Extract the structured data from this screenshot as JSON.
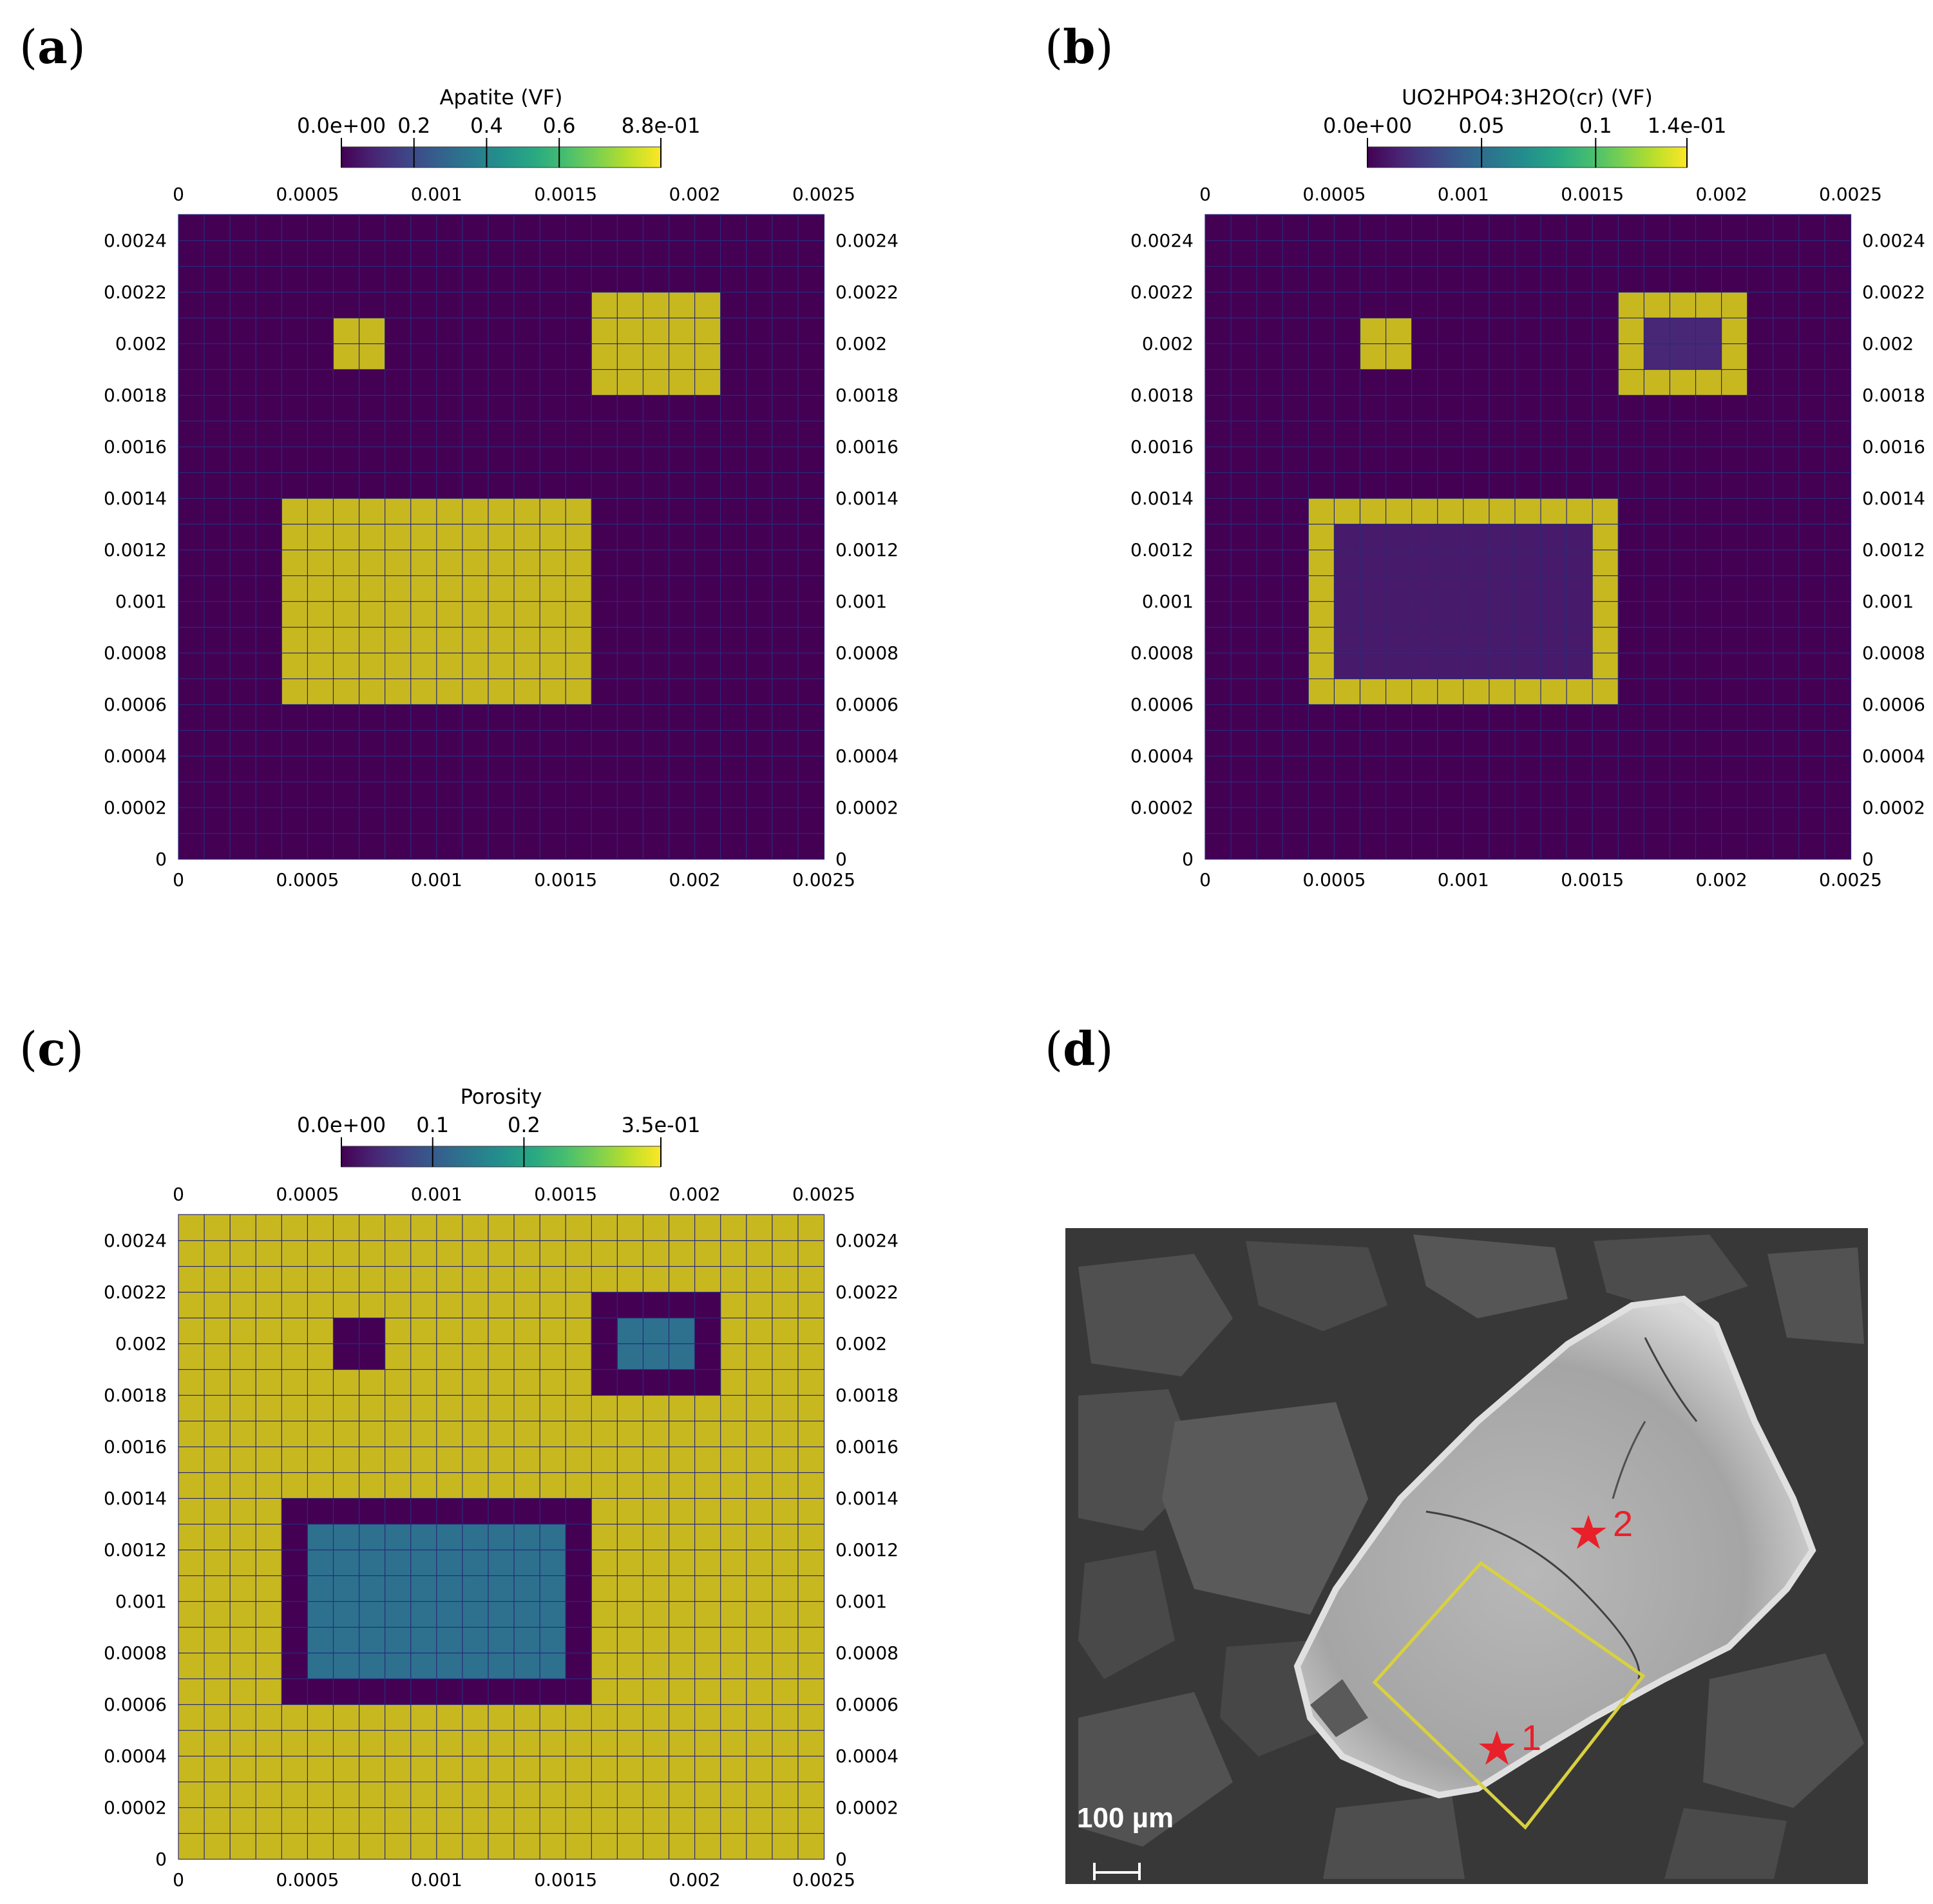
{
  "panels": [
    {
      "id": "a",
      "label_open": "(",
      "label_letter": "a",
      "label_close": ")"
    },
    {
      "id": "b",
      "label_open": "(",
      "label_letter": "b",
      "label_close": ")"
    },
    {
      "id": "c",
      "label_open": "(",
      "label_letter": "c",
      "label_close": ")"
    },
    {
      "id": "d",
      "label_open": "(",
      "label_letter": "d",
      "label_close": ")"
    }
  ],
  "chart_data": [
    {
      "type": "heatmap",
      "panel": "a",
      "title": "Apatite (VF)",
      "colorbar": {
        "min": 0,
        "max": 0.88,
        "ticks": [
          0,
          0.2,
          0.4,
          0.6,
          0.88
        ],
        "tick_labels": [
          "0.0e+00",
          "0.2",
          "0.4",
          "0.6",
          "8.8e-01"
        ]
      },
      "x_ticks": [
        0,
        0.0005,
        0.001,
        0.0015,
        0.002,
        0.0025
      ],
      "x_tick_labels": [
        "0",
        "0.0005",
        "0.001",
        "0.0015",
        "0.002",
        "0.0025"
      ],
      "y_ticks": [
        0,
        0.0002,
        0.0004,
        0.0006,
        0.0008,
        0.001,
        0.0012,
        0.0014,
        0.0016,
        0.0018,
        0.002,
        0.0022,
        0.0024
      ],
      "y_tick_labels": [
        "0",
        "0.0002",
        "0.0004",
        "0.0006",
        "0.0008",
        "0.001",
        "0.0012",
        "0.0014",
        "0.0016",
        "0.0018",
        "0.002",
        "0.0022",
        "0.0024"
      ],
      "xlim": [
        0,
        0.0025
      ],
      "ylim": [
        0,
        0.0025
      ],
      "background_value": 0,
      "regions": [
        {
          "x": [
            0.0004,
            0.0016
          ],
          "y": [
            0.0006,
            0.0014
          ],
          "value": 0.75
        },
        {
          "x": [
            0.0006,
            0.0008
          ],
          "y": [
            0.0019,
            0.0021
          ],
          "value": 0.75
        },
        {
          "x": [
            0.0016,
            0.0021
          ],
          "y": [
            0.0018,
            0.0022
          ],
          "value": 0.75
        }
      ]
    },
    {
      "type": "heatmap",
      "panel": "b",
      "title": "UO2HPO4:3H2O(cr) (VF)",
      "colorbar": {
        "min": 0,
        "max": 0.14,
        "ticks": [
          0,
          0.05,
          0.1,
          0.14
        ],
        "tick_labels": [
          "0.0e+00",
          "0.05",
          "0.1",
          "1.4e-01"
        ]
      },
      "x_ticks": [
        0,
        0.0005,
        0.001,
        0.0015,
        0.002,
        0.0025
      ],
      "x_tick_labels": [
        "0",
        "0.0005",
        "0.001",
        "0.0015",
        "0.002",
        "0.0025"
      ],
      "y_ticks": [
        0,
        0.0002,
        0.0004,
        0.0006,
        0.0008,
        0.001,
        0.0012,
        0.0014,
        0.0016,
        0.0018,
        0.002,
        0.0022,
        0.0024
      ],
      "y_tick_labels": [
        "0",
        "0.0002",
        "0.0004",
        "0.0006",
        "0.0008",
        "0.001",
        "0.0012",
        "0.0014",
        "0.0016",
        "0.0018",
        "0.002",
        "0.0022",
        "0.0024"
      ],
      "xlim": [
        0,
        0.0025
      ],
      "ylim": [
        0,
        0.0025
      ],
      "background_value": 0,
      "regions": [
        {
          "x": [
            0.0004,
            0.0016
          ],
          "y": [
            0.0006,
            0.0014
          ],
          "value": 0.125
        },
        {
          "x": [
            0.0005,
            0.0015
          ],
          "y": [
            0.0007,
            0.0013
          ],
          "value": 0.01
        },
        {
          "x": [
            0.0006,
            0.0008
          ],
          "y": [
            0.0019,
            0.0021
          ],
          "value": 0.13
        },
        {
          "x": [
            0.0016,
            0.0021
          ],
          "y": [
            0.0018,
            0.0022
          ],
          "value": 0.125
        },
        {
          "x": [
            0.0017,
            0.002
          ],
          "y": [
            0.0019,
            0.0021
          ],
          "value": 0.015
        }
      ]
    },
    {
      "type": "heatmap",
      "panel": "c",
      "title": "Porosity",
      "colorbar": {
        "min": 0,
        "max": 0.35,
        "ticks": [
          0,
          0.1,
          0.2,
          0.35
        ],
        "tick_labels": [
          "0.0e+00",
          "0.1",
          "0.2",
          "3.5e-01"
        ]
      },
      "x_ticks": [
        0,
        0.0005,
        0.001,
        0.0015,
        0.002,
        0.0025
      ],
      "x_tick_labels": [
        "0",
        "0.0005",
        "0.001",
        "0.0015",
        "0.002",
        "0.0025"
      ],
      "y_ticks": [
        0,
        0.0002,
        0.0004,
        0.0006,
        0.0008,
        0.001,
        0.0012,
        0.0014,
        0.0016,
        0.0018,
        0.002,
        0.0022,
        0.0024
      ],
      "y_tick_labels": [
        "0",
        "0.0002",
        "0.0004",
        "0.0006",
        "0.0008",
        "0.001",
        "0.0012",
        "0.0014",
        "0.0016",
        "0.0018",
        "0.002",
        "0.0022",
        "0.0024"
      ],
      "xlim": [
        0,
        0.0025
      ],
      "ylim": [
        0,
        0.0025
      ],
      "background_value": 0.3,
      "regions": [
        {
          "x": [
            0.0004,
            0.0016
          ],
          "y": [
            0.0006,
            0.0014
          ],
          "value": 0.0
        },
        {
          "x": [
            0.0005,
            0.0015
          ],
          "y": [
            0.0007,
            0.0013
          ],
          "value": 0.13
        },
        {
          "x": [
            0.0006,
            0.0008
          ],
          "y": [
            0.0019,
            0.0021
          ],
          "value": 0.0
        },
        {
          "x": [
            0.0016,
            0.0021
          ],
          "y": [
            0.0018,
            0.0022
          ],
          "value": 0.0
        },
        {
          "x": [
            0.0017,
            0.002
          ],
          "y": [
            0.0019,
            0.0021
          ],
          "value": 0.13
        }
      ]
    }
  ],
  "photo": {
    "scale_text": "100 µm",
    "markers": [
      {
        "label": "1"
      },
      {
        "label": "2"
      }
    ],
    "colors": {
      "marker": "#e8202a",
      "outline": "#d8d040"
    }
  }
}
